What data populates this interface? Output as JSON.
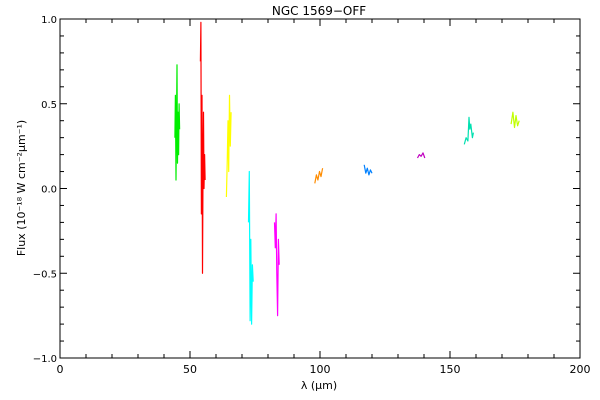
{
  "chart_data": {
    "type": "line",
    "title": "NGC 1569−OFF",
    "xlabel": "λ (μm)",
    "ylabel": "Flux (10⁻¹⁸ W cm⁻²μm⁻¹)",
    "xlim": [
      0,
      200
    ],
    "ylim": [
      -1.0,
      1.0
    ],
    "x_ticks": [
      0,
      50,
      100,
      150,
      200
    ],
    "x_tick_labels": [
      "0",
      "50",
      "100",
      "150",
      "200"
    ],
    "y_ticks": [
      -1.0,
      -0.5,
      0.0,
      0.5,
      1.0
    ],
    "y_tick_labels": [
      "−1.0",
      "−0.5",
      "0.0",
      "0.5",
      "1.0"
    ],
    "grid": false,
    "series": [
      {
        "color": "#00ee00",
        "x": [
          44.2,
          44.4,
          44.6,
          44.8,
          45.0,
          45.2,
          45.4,
          45.6,
          45.8,
          46.0
        ],
        "y": [
          0.3,
          0.55,
          0.05,
          0.4,
          0.73,
          0.15,
          0.45,
          0.2,
          0.5,
          0.35
        ]
      },
      {
        "color": "#ff0000",
        "x": [
          54.0,
          54.2,
          54.4,
          54.6,
          54.8,
          55.0,
          55.2,
          55.4,
          55.6,
          55.8
        ],
        "y": [
          0.75,
          0.98,
          -0.15,
          0.55,
          -0.5,
          0.1,
          0.45,
          0.0,
          0.2,
          0.05
        ]
      },
      {
        "color": "#ffff00",
        "x": [
          64.0,
          64.3,
          64.6,
          64.9,
          65.2,
          65.5,
          65.8
        ],
        "y": [
          -0.05,
          0.15,
          0.4,
          0.1,
          0.55,
          0.25,
          0.45
        ]
      },
      {
        "color": "#00ffff",
        "x": [
          72.5,
          72.8,
          73.1,
          73.4,
          73.7,
          74.0,
          74.3
        ],
        "y": [
          -0.2,
          0.1,
          -0.78,
          -0.3,
          -0.8,
          -0.45,
          -0.55
        ]
      },
      {
        "color": "#ff00ff",
        "x": [
          82.5,
          82.8,
          83.1,
          83.4,
          83.7,
          84.0,
          84.3
        ],
        "y": [
          -0.2,
          -0.35,
          -0.15,
          -0.5,
          -0.75,
          -0.3,
          -0.45
        ]
      },
      {
        "color": "#ff8c00",
        "x": [
          98.0,
          98.6,
          99.2,
          99.8,
          100.4,
          101.0
        ],
        "y": [
          0.03,
          0.08,
          0.05,
          0.1,
          0.07,
          0.12
        ]
      },
      {
        "color": "#0080ff",
        "x": [
          117.0,
          117.6,
          118.2,
          118.8,
          119.4,
          120.0
        ],
        "y": [
          0.14,
          0.09,
          0.12,
          0.08,
          0.11,
          0.09
        ]
      },
      {
        "color": "#c000c0",
        "x": [
          137.5,
          138.2,
          138.9,
          139.6,
          140.3
        ],
        "y": [
          0.18,
          0.2,
          0.19,
          0.21,
          0.18
        ]
      },
      {
        "color": "#00e0b0",
        "x": [
          155.5,
          156.2,
          156.9,
          157.3,
          157.6,
          158.0,
          158.6,
          159.0
        ],
        "y": [
          0.26,
          0.3,
          0.28,
          0.42,
          0.35,
          0.38,
          0.3,
          0.33
        ]
      },
      {
        "color": "#c0ff00",
        "x": [
          173.5,
          174.2,
          174.8,
          175.4,
          176.0,
          176.6
        ],
        "y": [
          0.38,
          0.45,
          0.36,
          0.43,
          0.37,
          0.4
        ]
      }
    ]
  }
}
